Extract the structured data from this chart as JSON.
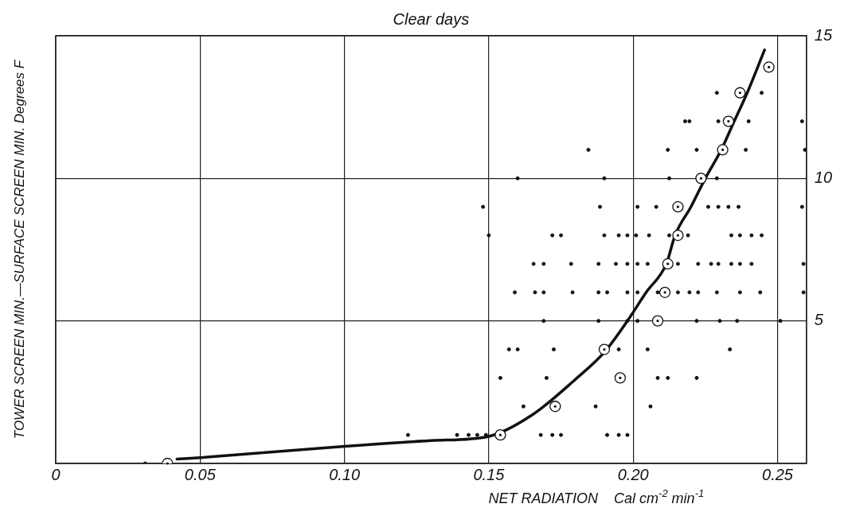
{
  "chart_data": {
    "type": "scatter",
    "title": "Clear days",
    "xlabel": "NET RADIATION    Cal cm$^{-2}$ min$^{-1}$",
    "ylabel": "TOWER SCREEN MIN.—SURFACE SCREEN MIN. Degrees F",
    "xlim": [
      0,
      0.26
    ],
    "ylim": [
      0,
      15
    ],
    "xticks": [
      0,
      {
        "value": 0.05,
        "label": "0.05"
      },
      {
        "value": 0.1,
        "label": "0.10"
      },
      0.15,
      {
        "value": 0.2,
        "label": "0.20"
      },
      0.25
    ],
    "yticks": [
      5,
      10,
      15
    ],
    "grid": true,
    "legend": false,
    "series": [
      {
        "marker": "circle",
        "color": "#111111",
        "x": [
          0.031,
          0.122,
          0.139,
          0.143,
          0.146,
          0.149,
          0.168,
          0.172,
          0.175,
          0.191,
          0.195,
          0.198,
          0.162,
          0.187,
          0.206,
          0.154,
          0.17,
          0.2085,
          0.212,
          0.222,
          0.157,
          0.16,
          0.1725,
          0.195,
          0.205,
          0.2335,
          0.169,
          0.188,
          0.198,
          0.2015,
          0.222,
          0.23,
          0.236,
          0.251,
          0.159,
          0.166,
          0.169,
          0.179,
          0.188,
          0.191,
          0.198,
          0.2015,
          0.2085,
          0.2155,
          0.2195,
          0.2225,
          0.229,
          0.237,
          0.244,
          0.259,
          0.1655,
          0.169,
          0.1785,
          0.188,
          0.194,
          0.198,
          0.2015,
          0.205,
          0.2155,
          0.2225,
          0.227,
          0.2295,
          0.234,
          0.237,
          0.241,
          0.259,
          0.15,
          0.172,
          0.175,
          0.19,
          0.195,
          0.198,
          0.201,
          0.2055,
          0.2125,
          0.219,
          0.234,
          0.237,
          0.241,
          0.2445,
          0.148,
          0.1885,
          0.2015,
          0.208,
          0.226,
          0.2295,
          0.233,
          0.2365,
          0.2585,
          0.16,
          0.19,
          0.2125,
          0.229,
          0.1845,
          0.212,
          0.222,
          0.239,
          0.2595,
          0.218,
          0.2195,
          0.2295,
          0.24,
          0.2585,
          0.229,
          0.2445
        ],
        "values": [
          0,
          1,
          1,
          1,
          1,
          1,
          1,
          1,
          1,
          1,
          1,
          1,
          2,
          2,
          2,
          3,
          3,
          3,
          3,
          3,
          4,
          4,
          4,
          4,
          4,
          4,
          5,
          5,
          5,
          5,
          5,
          5,
          5,
          5,
          6,
          6,
          6,
          6,
          6,
          6,
          6,
          6,
          6,
          6,
          6,
          6,
          6,
          6,
          6,
          6,
          7,
          7,
          7,
          7,
          7,
          7,
          7,
          7,
          7,
          7,
          7,
          7,
          7,
          7,
          7,
          7,
          8,
          8,
          8,
          8,
          8,
          8,
          8,
          8,
          8,
          8,
          8,
          8,
          8,
          8,
          9,
          9,
          9,
          9,
          9,
          9,
          9,
          9,
          9,
          10,
          10,
          10,
          10,
          11,
          11,
          11,
          11,
          11,
          12,
          12,
          12,
          12,
          12,
          13,
          13
        ]
      },
      {
        "marker": "circle",
        "color": "#111111",
        "x": [
          0.0387,
          0.154,
          0.173,
          0.1955,
          0.19,
          0.2085,
          0.211,
          0.212,
          0.2155,
          0.2155,
          0.2235,
          0.231,
          0.233,
          0.237,
          0.247
        ],
        "values": [
          0,
          1,
          2,
          3,
          4,
          5,
          6,
          7,
          8,
          9,
          10,
          11,
          12,
          13,
          13.9
        ]
      },
      {
        "type": "line",
        "marker": "none",
        "line_style": "solid",
        "color": "#111111",
        "x": [
          0.042,
          0.05,
          0.1,
          0.13,
          0.15,
          0.165,
          0.18,
          0.19,
          0.198,
          0.2045,
          0.2115,
          0.2145,
          0.22,
          0.225,
          0.2305,
          0.235,
          0.2395,
          0.2455
        ],
        "values": [
          0.15,
          0.2,
          0.6,
          0.8,
          0.95,
          1.7,
          2.95,
          3.9,
          5,
          6,
          7,
          8,
          9,
          10,
          11,
          12,
          13,
          14.5
        ]
      }
    ]
  }
}
